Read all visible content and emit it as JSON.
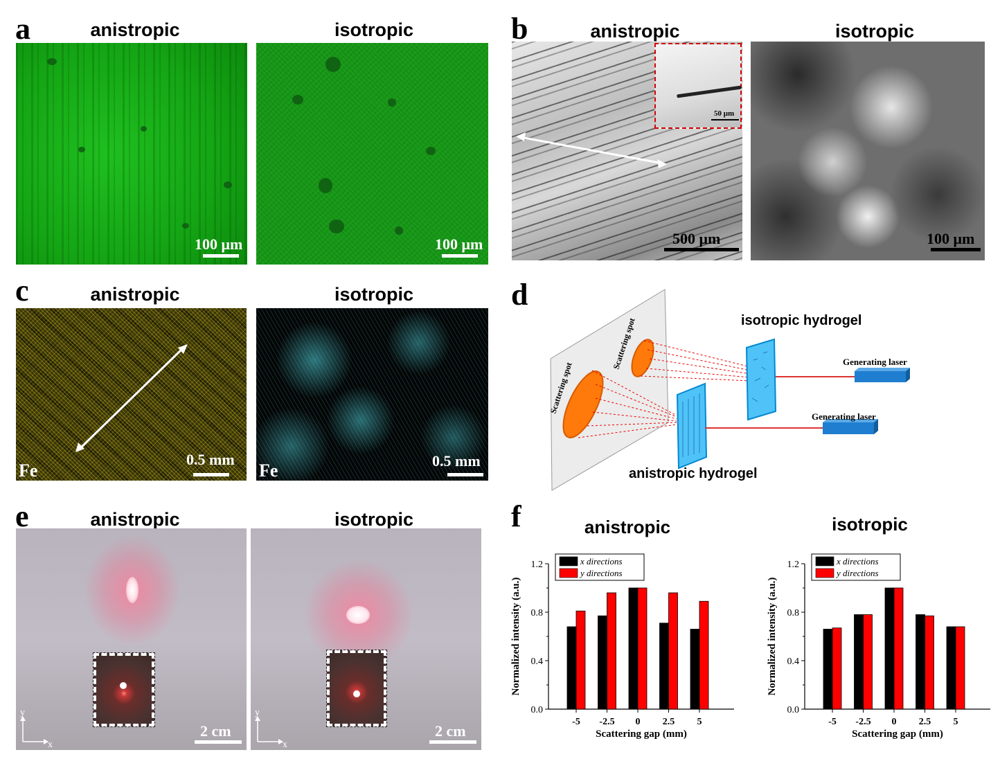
{
  "panels": {
    "a": {
      "letter": "a",
      "left_title": "anistropic",
      "right_title": "isotropic",
      "left_scale": "100 μm",
      "right_scale": "100 μm"
    },
    "b": {
      "letter": "b",
      "left_title": "anistropic",
      "right_title": "isotropic",
      "left_scale": "500 μm",
      "right_scale": "100 μm",
      "inset_scale": "50 μm"
    },
    "c": {
      "letter": "c",
      "left_title": "anistropic",
      "right_title": "isotropic",
      "left_scale": "0.5 mm",
      "right_scale": "0.5 mm",
      "element_left": "Fe",
      "element_right": "Fe"
    },
    "d": {
      "letter": "d",
      "label_iso": "isotropic hydrogel",
      "label_aniso": "anistropic hydrogel",
      "laser_top": "Generating laser",
      "laser_bottom": "Generating laser",
      "spot_left": "Scattering spot",
      "spot_right": "Scattering spot"
    },
    "e": {
      "letter": "e",
      "left_title": "anistropic",
      "right_title": "isotropic",
      "left_scale": "2 cm",
      "right_scale": "2 cm",
      "axis_y": "y",
      "axis_x": "x"
    },
    "f": {
      "letter": "f"
    }
  },
  "colors": {
    "x_series": "#000000",
    "y_series": "#ff0000",
    "scale_white": "#ffffff",
    "scale_black": "#000000"
  },
  "chart_data": [
    {
      "type": "bar",
      "title": "anistropic",
      "categories": [
        "-5",
        "-2.5",
        "0",
        "2.5",
        "5"
      ],
      "series": [
        {
          "name": "x directions",
          "values": [
            0.68,
            0.77,
            1.0,
            0.71,
            0.66
          ]
        },
        {
          "name": "y directions",
          "values": [
            0.81,
            0.96,
            1.0,
            0.96,
            0.89
          ]
        }
      ],
      "xlabel": "Scattering gap (mm)",
      "ylabel": "Normalized intensity (a.u.)",
      "ylim": [
        0,
        1.2
      ],
      "yticks": [
        "0.0",
        "0.4",
        "0.8",
        "1.2"
      ],
      "legend": "top-left"
    },
    {
      "type": "bar",
      "title": "isotropic",
      "categories": [
        "-5",
        "-2.5",
        "0",
        "2.5",
        "5"
      ],
      "series": [
        {
          "name": "x directions",
          "values": [
            0.66,
            0.78,
            1.0,
            0.78,
            0.68
          ]
        },
        {
          "name": "y directions",
          "values": [
            0.67,
            0.78,
            1.0,
            0.77,
            0.68
          ]
        }
      ],
      "xlabel": "Scattering gap (mm)",
      "ylabel": "Normalized intensity (a.u.)",
      "ylim": [
        0,
        1.2
      ],
      "yticks": [
        "0.0",
        "0.4",
        "0.8",
        "1.2"
      ],
      "legend": "top-left"
    }
  ]
}
